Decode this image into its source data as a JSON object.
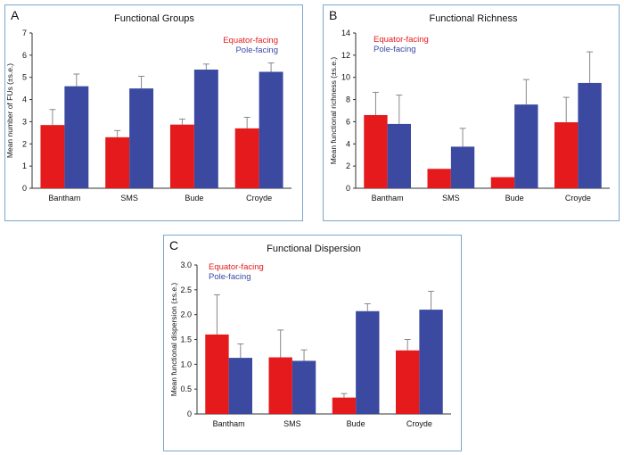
{
  "colors": {
    "equator": "#e41a1c",
    "pole": "#3b4aa0",
    "axis": "#333333",
    "frame": "#7fa7c9"
  },
  "chart_data": [
    {
      "panel": "A",
      "type": "bar",
      "title": "Functional Groups",
      "ylabel": "Mean number of FUs (±s.e.)",
      "xlabel": "",
      "ylim": [
        0,
        7
      ],
      "yticks": [
        "0",
        "1",
        "2",
        "3",
        "4",
        "5",
        "6",
        "7"
      ],
      "categories": [
        "Bantham",
        "SMS",
        "Bude",
        "Croyde"
      ],
      "legend_position": "top-right",
      "series": [
        {
          "name": "Equator-facing",
          "values": [
            2.85,
            2.3,
            2.87,
            2.7
          ],
          "errors": [
            0.7,
            0.3,
            0.25,
            0.5
          ]
        },
        {
          "name": "Pole-facing",
          "values": [
            4.6,
            4.5,
            5.35,
            5.25
          ],
          "errors": [
            0.55,
            0.55,
            0.25,
            0.4
          ]
        }
      ]
    },
    {
      "panel": "B",
      "type": "bar",
      "title": "Functional Richness",
      "ylabel": "Mean functional richness (±s.e.)",
      "xlabel": "",
      "ylim": [
        0,
        14
      ],
      "yticks": [
        "0",
        "2",
        "4",
        "6",
        "8",
        "10",
        "12",
        "14"
      ],
      "categories": [
        "Bantham",
        "SMS",
        "Bude",
        "Croyde"
      ],
      "legend_position": "top-left",
      "series": [
        {
          "name": "Equator-facing",
          "values": [
            6.6,
            1.75,
            1.0,
            5.95
          ],
          "errors": [
            2.05,
            0,
            0,
            2.25
          ]
        },
        {
          "name": "Pole-facing",
          "values": [
            5.8,
            3.75,
            7.55,
            9.5
          ],
          "errors": [
            2.6,
            1.65,
            2.25,
            2.8
          ]
        }
      ]
    },
    {
      "panel": "C",
      "type": "bar",
      "title": "Functional Dispersion",
      "ylabel": "Mean functional dispersion (±s.e.)",
      "xlabel": "",
      "ylim": [
        0,
        3.0
      ],
      "yticks": [
        "0",
        "0.5",
        "1.0",
        "1.5",
        "2.0",
        "2.5",
        "3.0"
      ],
      "categories": [
        "Bantham",
        "SMS",
        "Bude",
        "Croyde"
      ],
      "legend_position": "top-left",
      "series": [
        {
          "name": "Equator-facing",
          "values": [
            1.6,
            1.14,
            0.33,
            1.28
          ],
          "errors": [
            0.8,
            0.55,
            0.08,
            0.22
          ]
        },
        {
          "name": "Pole-facing",
          "values": [
            1.13,
            1.07,
            2.07,
            2.1
          ],
          "errors": [
            0.28,
            0.22,
            0.15,
            0.37
          ]
        }
      ]
    }
  ]
}
